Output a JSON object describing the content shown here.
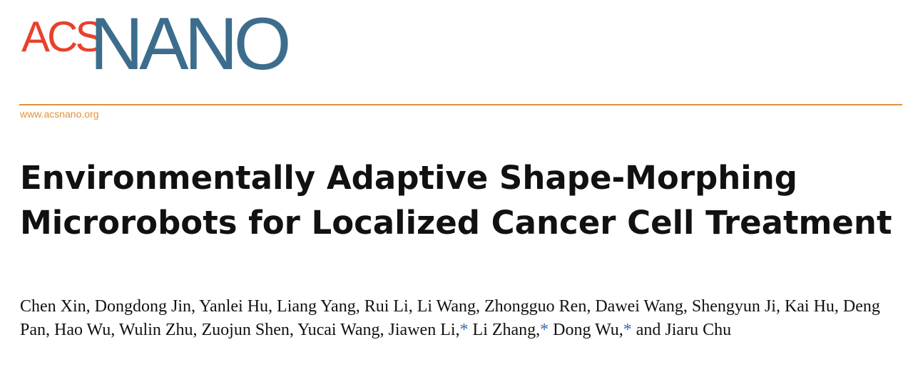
{
  "journal": {
    "logo_part1": "ACS",
    "logo_part2": "NANO",
    "logo_colors": {
      "acs": "#e8412c",
      "nano": "#3d6d8c"
    },
    "url": "www.acsnano.org",
    "accent_color": "#e0913b"
  },
  "article": {
    "title": "Environmentally Adaptive Shape-Morphing Microrobots for Localized Cancer Cell Treatment",
    "authors": [
      {
        "name": "Chen Xin",
        "corresponding": false
      },
      {
        "name": "Dongdong Jin",
        "corresponding": false
      },
      {
        "name": "Yanlei Hu",
        "corresponding": false
      },
      {
        "name": "Liang Yang",
        "corresponding": false
      },
      {
        "name": "Rui Li",
        "corresponding": false
      },
      {
        "name": "Li Wang",
        "corresponding": false
      },
      {
        "name": "Zhongguo Ren",
        "corresponding": false
      },
      {
        "name": "Dawei Wang",
        "corresponding": false
      },
      {
        "name": "Shengyun Ji",
        "corresponding": false
      },
      {
        "name": "Kai Hu",
        "corresponding": false
      },
      {
        "name": "Deng Pan",
        "corresponding": false
      },
      {
        "name": "Hao Wu",
        "corresponding": false
      },
      {
        "name": "Wulin Zhu",
        "corresponding": false
      },
      {
        "name": "Zuojun Shen",
        "corresponding": false
      },
      {
        "name": "Yucai Wang",
        "corresponding": false
      },
      {
        "name": "Jiawen Li",
        "corresponding": true
      },
      {
        "name": "Li Zhang",
        "corresponding": true
      },
      {
        "name": "Dong Wu",
        "corresponding": true
      },
      {
        "name": "Jiaru Chu",
        "corresponding": false
      }
    ],
    "corresponding_mark": "*",
    "conjunction": "and"
  }
}
